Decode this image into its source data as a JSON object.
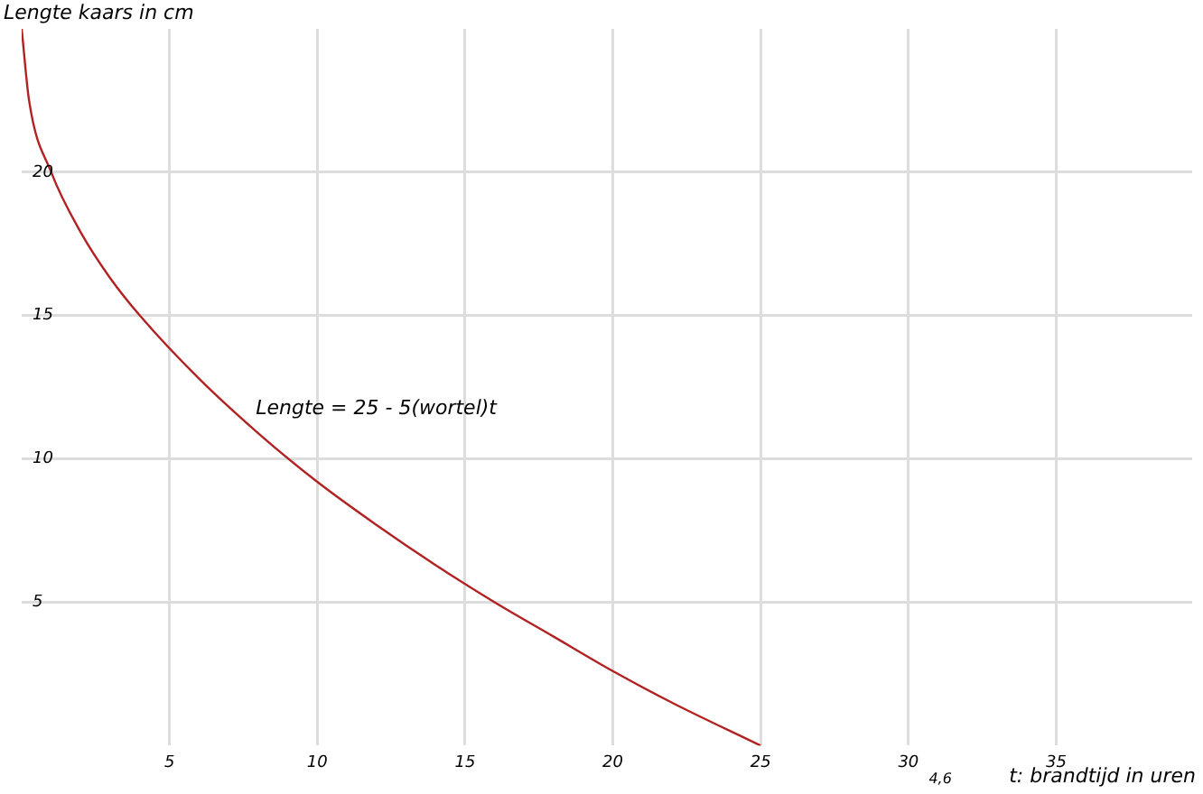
{
  "chart_data": {
    "type": "line",
    "xlabel": "t: brandtijd in uren",
    "ylabel": "Lengte kaars in cm",
    "annotations": [
      "Lengte = 25 - 5(wortel)t",
      "4,6"
    ],
    "series": [
      {
        "color": "#b22222",
        "x": [
          0,
          0.25,
          1,
          2,
          3,
          4,
          6,
          8,
          10,
          12,
          14,
          16,
          18,
          20,
          22,
          25
        ],
        "values": [
          25,
          22.5,
          20,
          17.9,
          16.3,
          15,
          12.8,
          10.9,
          9.2,
          7.7,
          6.3,
          5,
          3.8,
          2.6,
          1.5,
          0
        ]
      }
    ],
    "xlim": [
      0,
      39.6
    ],
    "xticks": [
      5,
      10,
      15,
      20,
      25,
      30,
      35
    ],
    "ylim": [
      0,
      25
    ],
    "yticks": [
      5,
      10,
      15,
      20
    ],
    "grid": true,
    "legend": false,
    "marker": "none",
    "line_style": "solid"
  }
}
